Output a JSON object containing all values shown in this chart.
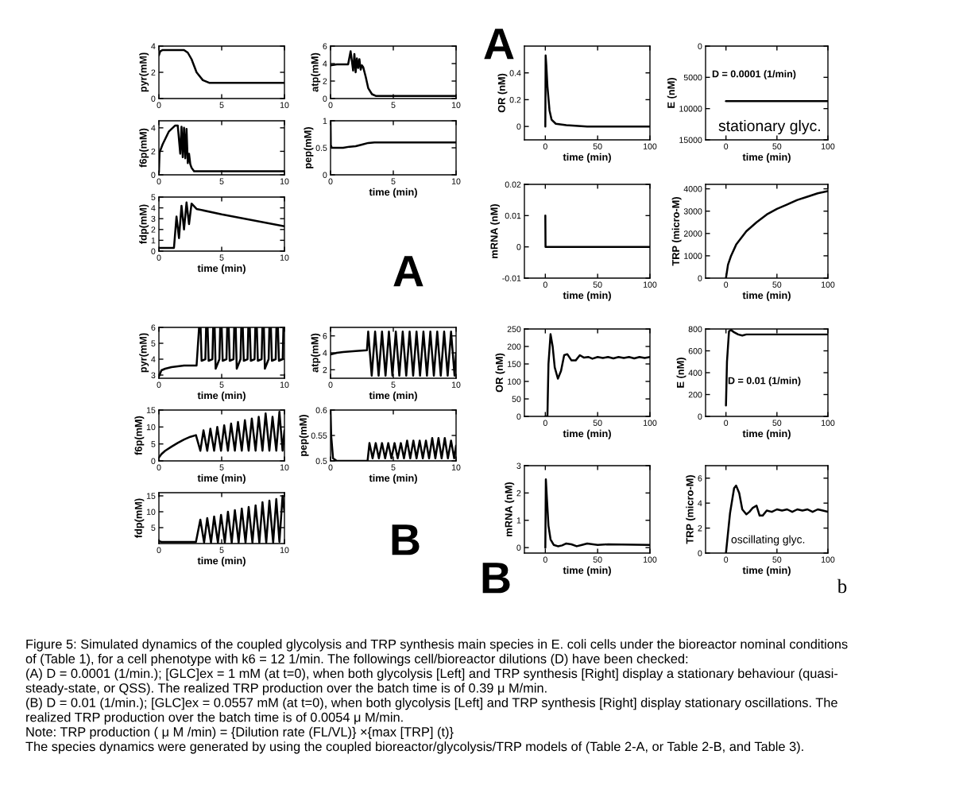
{
  "chart_data": [
    {
      "type": "line",
      "ylabel": "pyr(mM)",
      "xlim": [
        0,
        10
      ],
      "xticks": [
        0,
        5,
        10
      ],
      "ylim": [
        0,
        4
      ],
      "yticks": [
        0,
        2,
        4
      ],
      "x": [
        0,
        0.1,
        0.3,
        1,
        2,
        2.3,
        2.6,
        3,
        3.5,
        4,
        5,
        10
      ],
      "series": [
        {
          "color": "#000000",
          "values": [
            3.3,
            3.6,
            3.7,
            3.7,
            3.7,
            3.5,
            3.0,
            2.0,
            1.4,
            1.2,
            1.2,
            1.2
          ]
        }
      ]
    },
    {
      "type": "line",
      "ylabel": "atp(mM)",
      "xlim": [
        0,
        10
      ],
      "xticks": [
        0,
        5,
        10
      ],
      "ylim": [
        0,
        6
      ],
      "yticks": [
        0,
        2,
        4,
        6
      ],
      "x": [
        0,
        0.5,
        1.4,
        1.6,
        1.8,
        1.9,
        2.0,
        2.1,
        2.2,
        2.3,
        2.4,
        2.5,
        2.6,
        2.8,
        3.0,
        3.3,
        3.6,
        4,
        10
      ],
      "series": [
        {
          "color": "#000000",
          "values": [
            3.8,
            3.9,
            3.9,
            5.4,
            3.2,
            5.1,
            3.0,
            4.6,
            3.5,
            4.5,
            3.3,
            3.8,
            3.6,
            2.5,
            1.2,
            0.5,
            0.3,
            0.3,
            0.3
          ]
        }
      ]
    },
    {
      "type": "line",
      "ylabel": "f6p(mM)",
      "xlim": [
        0,
        10
      ],
      "xticks": [
        0,
        5,
        10
      ],
      "ylim": [
        0,
        4.6
      ],
      "yticks": [
        0,
        2,
        4
      ],
      "x": [
        0,
        0.05,
        0.3,
        0.8,
        1.3,
        1.5,
        1.7,
        1.8,
        1.9,
        2.0,
        2.1,
        2.2,
        2.3,
        2.4,
        2.5,
        2.6,
        2.8,
        3,
        10
      ],
      "series": [
        {
          "color": "#000000",
          "values": [
            0.2,
            1.9,
            2.6,
            3.7,
            4.2,
            4.2,
            1.8,
            4.1,
            1.5,
            4.0,
            1.4,
            3.9,
            1.0,
            1.8,
            0.9,
            0.6,
            0.3,
            0.3,
            0.3
          ]
        }
      ]
    },
    {
      "type": "line",
      "xlabel": "time (min)",
      "ylabel": "pep(mM)",
      "xlim": [
        0,
        10
      ],
      "xticks": [
        0,
        5,
        10
      ],
      "ylim": [
        0,
        1
      ],
      "yticks": [
        0,
        0.5,
        1
      ],
      "x": [
        0,
        0.02,
        0.1,
        1,
        1.5,
        2,
        2.5,
        3,
        3.5,
        5,
        7,
        10
      ],
      "series": [
        {
          "color": "#000000",
          "values": [
            1,
            0.55,
            0.5,
            0.5,
            0.52,
            0.53,
            0.56,
            0.59,
            0.6,
            0.6,
            0.6,
            0.6
          ]
        }
      ]
    },
    {
      "type": "line",
      "xlabel": "time (min)",
      "ylabel": "fdp(mM)",
      "xlim": [
        0,
        10
      ],
      "xticks": [
        0,
        5,
        10
      ],
      "ylim": [
        0,
        5
      ],
      "yticks": [
        0,
        1,
        2,
        3,
        4,
        5
      ],
      "x": [
        0,
        1.2,
        1.4,
        1.6,
        1.8,
        2.0,
        2.2,
        2.4,
        2.6,
        3,
        5,
        10
      ],
      "series": [
        {
          "color": "#000000",
          "values": [
            0.3,
            0.3,
            3.2,
            1.2,
            4.2,
            2.0,
            4.5,
            2.5,
            4.4,
            3.9,
            3.4,
            2.3
          ]
        }
      ],
      "annotations": [
        "A"
      ]
    },
    {
      "type": "line",
      "xlabel": "time (min)",
      "ylabel": "OR (nM)",
      "xlim": [
        -20,
        100
      ],
      "xticks": [
        0,
        50,
        100
      ],
      "ylim": [
        -0.1,
        0.6
      ],
      "yticks": [
        0,
        0.2,
        0.4
      ],
      "x": [
        0,
        0.3,
        1,
        2,
        4,
        6,
        10,
        20,
        40,
        100
      ],
      "series": [
        {
          "color": "#000000",
          "values": [
            0,
            0.53,
            0.45,
            0.3,
            0.12,
            0.05,
            0.02,
            0.01,
            0,
            0
          ]
        }
      ],
      "annotations": [
        "A"
      ]
    },
    {
      "type": "line",
      "xlabel": "time (min)",
      "ylabel": "E (nM)",
      "xlim": [
        -20,
        100
      ],
      "xticks": [
        0,
        50,
        100
      ],
      "ylim": [
        15000,
        0
      ],
      "yticks": [
        0,
        5000,
        10000,
        15000
      ],
      "x": [
        0,
        100
      ],
      "series": [
        {
          "color": "#000000",
          "values": [
            8800,
            8800
          ]
        }
      ],
      "annotations": [
        "D = 0.0001 (1/min)",
        "stationary glyc."
      ]
    },
    {
      "type": "line",
      "xlabel": "time (min)",
      "ylabel": "mRNA (nM)",
      "xlim": [
        -20,
        100
      ],
      "xticks": [
        0,
        50,
        100
      ],
      "ylim": [
        -0.01,
        0.02
      ],
      "yticks": [
        -0.01,
        0,
        0.01,
        0.02
      ],
      "x": [
        0,
        0.2,
        1,
        100
      ],
      "series": [
        {
          "color": "#000000",
          "values": [
            0.01,
            0,
            0,
            0
          ]
        }
      ]
    },
    {
      "type": "line",
      "xlabel": "time (min)",
      "ylabel": "TRP (micro-M)",
      "xlim": [
        -20,
        100
      ],
      "xticks": [
        0,
        50,
        100
      ],
      "ylim": [
        0,
        4200
      ],
      "yticks": [
        0,
        1000,
        2000,
        3000,
        4000
      ],
      "x": [
        0,
        2,
        5,
        10,
        20,
        30,
        40,
        50,
        60,
        70,
        80,
        90,
        100
      ],
      "series": [
        {
          "color": "#000000",
          "values": [
            0,
            600,
            1000,
            1500,
            2100,
            2500,
            2850,
            3100,
            3300,
            3500,
            3650,
            3800,
            3900
          ]
        }
      ]
    },
    {
      "type": "line",
      "xlabel": "time (min)",
      "ylabel": "pyr(mM)",
      "xlim": [
        0,
        10
      ],
      "xticks": [
        0,
        5,
        10
      ],
      "ylim": [
        2.8,
        6
      ],
      "yticks": [
        3,
        4,
        5,
        6
      ],
      "x": [
        0,
        0.2,
        0.5,
        1,
        2,
        3,
        3.2,
        3.32,
        3.4,
        3.7,
        3.76,
        3.88,
        3.96,
        4.26,
        4.32,
        4.44,
        4.52,
        4.82,
        4.88,
        5.0,
        5.08,
        5.38,
        5.44,
        5.56,
        5.64,
        5.94,
        6.0,
        6.12,
        6.2,
        6.5,
        6.56,
        6.68,
        6.76,
        7.06,
        7.12,
        7.24,
        7.32,
        7.62,
        7.68,
        7.8,
        7.88,
        8.18,
        8.24,
        8.36,
        8.44,
        8.74,
        8.8,
        8.92,
        9.0,
        9.3,
        9.36,
        9.48,
        9.56,
        9.86,
        9.92,
        10
      ],
      "series": [
        {
          "color": "#000000",
          "values": [
            2.9,
            3.3,
            3.4,
            3.5,
            3.6,
            3.6,
            6,
            6,
            3.9,
            4.0,
            6,
            6,
            3.9,
            4.0,
            6,
            6,
            3.4,
            4.0,
            6,
            6,
            3.9,
            4.0,
            6,
            6,
            3.9,
            4.0,
            6,
            6,
            3.4,
            4.0,
            6,
            6,
            3.9,
            4.0,
            6,
            6,
            3.9,
            4.0,
            6,
            6,
            3.9,
            4.0,
            6,
            6,
            3.4,
            4.0,
            6,
            6,
            3.9,
            4.0,
            6,
            6,
            3.9,
            4.0,
            6,
            6
          ]
        }
      ]
    },
    {
      "type": "line",
      "xlabel": "time (min)",
      "ylabel": "atp(mM)",
      "xlim": [
        0,
        10
      ],
      "xticks": [
        0,
        5,
        10
      ],
      "ylim": [
        1,
        7
      ],
      "yticks": [
        2,
        4,
        6
      ],
      "x": [
        0,
        0.5,
        1,
        2,
        2.9,
        3.0,
        3.28,
        3.55,
        3.83,
        4.1,
        4.38,
        4.65,
        4.93,
        5.2,
        5.48,
        5.75,
        6.03,
        6.3,
        6.58,
        6.85,
        7.13,
        7.4,
        7.68,
        7.95,
        8.23,
        8.5,
        8.78,
        9.05,
        9.33,
        9.6,
        9.88,
        10
      ],
      "series": [
        {
          "color": "#000000",
          "values": [
            3.8,
            4.0,
            4.1,
            4.2,
            4.3,
            6.5,
            1.3,
            6.5,
            1.3,
            6.5,
            1.3,
            6.5,
            1.3,
            6.5,
            1.3,
            6.5,
            1.3,
            6.5,
            1.3,
            6.5,
            1.3,
            6.5,
            1.3,
            6.5,
            1.3,
            6.5,
            1.3,
            6.5,
            1.3,
            6.5,
            1.3,
            4
          ]
        }
      ]
    },
    {
      "type": "line",
      "xlabel": "time (min)",
      "ylabel": "f6p(mM)",
      "xlim": [
        0,
        10
      ],
      "xticks": [
        0,
        5,
        10
      ],
      "ylim": [
        0,
        15
      ],
      "yticks": [
        0,
        5,
        10,
        15
      ],
      "x": [
        0,
        0.2,
        0.5,
        1,
        1.5,
        2,
        2.5,
        2.95,
        3.3,
        3.55,
        3.85,
        4.1,
        4.4,
        4.65,
        4.95,
        5.2,
        5.5,
        5.75,
        6.05,
        6.3,
        6.6,
        6.85,
        7.15,
        7.4,
        7.7,
        7.95,
        8.25,
        8.5,
        8.8,
        9.05,
        9.35,
        9.6,
        9.85,
        10
      ],
      "series": [
        {
          "color": "#000000",
          "values": [
            1,
            2,
            3,
            4.2,
            5.3,
            6.3,
            7.1,
            7.6,
            3,
            9,
            3,
            9.5,
            3,
            10,
            3,
            10.5,
            3,
            11,
            3,
            11.5,
            3,
            12,
            3,
            12.5,
            3,
            13,
            3,
            14,
            3,
            13,
            3,
            14.5,
            3,
            9
          ]
        }
      ]
    },
    {
      "type": "line",
      "xlabel": "time (min)",
      "ylabel": "pep(mM)",
      "xlim": [
        0,
        10
      ],
      "xticks": [
        0,
        5,
        10
      ],
      "ylim": [
        0.5,
        0.6
      ],
      "yticks": [
        0.5,
        0.55,
        0.6
      ],
      "x": [
        0,
        0.05,
        0.2,
        0.5,
        1,
        2.95,
        3.1,
        3.35,
        3.6,
        3.85,
        4.1,
        4.35,
        4.6,
        4.85,
        5.1,
        5.35,
        5.6,
        5.85,
        6.1,
        6.35,
        6.6,
        6.85,
        7.1,
        7.35,
        7.6,
        7.85,
        8.1,
        8.35,
        8.6,
        8.85,
        9.1,
        9.35,
        9.6,
        9.85,
        10
      ],
      "series": [
        {
          "color": "#000000",
          "values": [
            0.6,
            0.55,
            0.505,
            0.5,
            0.5,
            0.5,
            0.535,
            0.505,
            0.535,
            0.505,
            0.535,
            0.505,
            0.535,
            0.505,
            0.535,
            0.505,
            0.535,
            0.505,
            0.54,
            0.505,
            0.54,
            0.505,
            0.54,
            0.505,
            0.54,
            0.505,
            0.545,
            0.505,
            0.545,
            0.505,
            0.545,
            0.505,
            0.54,
            0.505,
            0.53
          ]
        }
      ]
    },
    {
      "type": "line",
      "xlabel": "time (min)",
      "ylabel": "fdp(mM)",
      "xlim": [
        0,
        10
      ],
      "xticks": [
        0,
        5,
        10
      ],
      "ylim": [
        0,
        16
      ],
      "yticks": [
        5,
        10,
        15
      ],
      "x": [
        0,
        0.2,
        2.95,
        3.3,
        3.6,
        3.85,
        4.15,
        4.4,
        4.7,
        4.95,
        5.25,
        5.5,
        5.8,
        6.05,
        6.35,
        6.6,
        6.9,
        7.15,
        7.45,
        7.7,
        8.0,
        8.25,
        8.55,
        8.8,
        9.1,
        9.35,
        9.6,
        9.85,
        10
      ],
      "series": [
        {
          "color": "#000000",
          "values": [
            0.8,
            0.5,
            0.5,
            7.5,
            0.3,
            8,
            0.3,
            8.5,
            0.3,
            9,
            0.3,
            10,
            0.3,
            10.5,
            0.3,
            11,
            0.3,
            11.5,
            0.3,
            12,
            0.3,
            13,
            0.3,
            13.5,
            0.3,
            14,
            0.5,
            15,
            10
          ]
        }
      ],
      "annotations": [
        "B"
      ]
    },
    {
      "type": "line",
      "xlabel": "time (min)",
      "ylabel": "OR (nM)",
      "xlim": [
        -20,
        100
      ],
      "xticks": [
        0,
        50,
        100
      ],
      "ylim": [
        0,
        250
      ],
      "yticks": [
        0,
        50,
        100,
        150,
        200,
        250
      ],
      "x": [
        0,
        2,
        3,
        5,
        7,
        9,
        12,
        15,
        18,
        21,
        25,
        29,
        33,
        37,
        41,
        45,
        50,
        55,
        60,
        65,
        70,
        75,
        80,
        85,
        90,
        95,
        100
      ],
      "series": [
        {
          "color": "#000000",
          "values": [
            0,
            0,
            150,
            235,
            200,
            140,
            108,
            130,
            175,
            178,
            160,
            160,
            175,
            168,
            170,
            165,
            170,
            167,
            170,
            166,
            170,
            167,
            170,
            166,
            170,
            167,
            170
          ]
        }
      ]
    },
    {
      "type": "line",
      "xlabel": "time (min)",
      "ylabel": "E (nM)",
      "xlim": [
        -20,
        100
      ],
      "xticks": [
        0,
        50,
        100
      ],
      "ylim": [
        0,
        800
      ],
      "yticks": [
        0,
        200,
        400,
        600,
        800
      ],
      "x": [
        0,
        1,
        3,
        5,
        8,
        12,
        16,
        20,
        30,
        50,
        100
      ],
      "series": [
        {
          "color": "#000000",
          "values": [
            100,
            500,
            780,
            790,
            770,
            750,
            740,
            750,
            750,
            750,
            750
          ]
        }
      ],
      "annotations": [
        "D = 0.01 (1/min)"
      ]
    },
    {
      "type": "line",
      "xlabel": "time (min)",
      "ylabel": "mRNA (nM)",
      "xlim": [
        -20,
        100
      ],
      "xticks": [
        0,
        50,
        100
      ],
      "ylim": [
        -0.2,
        3
      ],
      "yticks": [
        0,
        1,
        2,
        3
      ],
      "x": [
        0,
        0.5,
        1.5,
        3,
        5,
        8,
        12,
        16,
        20,
        25,
        30,
        35,
        40,
        50,
        60,
        100
      ],
      "series": [
        {
          "color": "#000000",
          "values": [
            0,
            2.5,
            1.8,
            0.8,
            0.3,
            0.1,
            0.05,
            0.08,
            0.15,
            0.12,
            0.05,
            0.1,
            0.15,
            0.1,
            0.12,
            0.1
          ]
        }
      ],
      "annotations": [
        "B"
      ]
    },
    {
      "type": "line",
      "xlabel": "time (min)",
      "ylabel": "TRP (micro-M)",
      "xlim": [
        -20,
        100
      ],
      "xticks": [
        0,
        50,
        100
      ],
      "ylim": [
        0,
        7
      ],
      "yticks": [
        0,
        2,
        4,
        6
      ],
      "x": [
        0,
        4,
        8,
        10,
        13,
        16,
        20,
        23,
        26,
        30,
        33,
        36,
        40,
        45,
        50,
        55,
        60,
        65,
        70,
        75,
        80,
        85,
        90,
        95,
        100
      ],
      "series": [
        {
          "color": "#000000",
          "values": [
            0,
            3.2,
            5.2,
            5.4,
            4.8,
            3.5,
            3.1,
            3.3,
            3.6,
            3.8,
            3.0,
            3.0,
            3.4,
            3.3,
            3.5,
            3.4,
            3.5,
            3.3,
            3.5,
            3.4,
            3.5,
            3.3,
            3.5,
            3.4,
            3.3
          ]
        }
      ],
      "annotations": [
        "oscillating glyc.",
        "b"
      ]
    },
    {
      "type": "other",
      "annotations": [
        "Figure 5: Simulated dynamics of the coupled glycolysis and TRP synthesis main species in E. coli cells under the bioreactor nominal conditions",
        "of (Table 1), for a cell phenotype with k6 = 12 1/min. The followings cell/bioreactor dilutions (D) have been checked:",
        "(A) D = 0.0001 (1/min.); [GLC]ex = 1 mM (at t=0), when both glycolysis [Left] and TRP synthesis [Right] display a stationary behaviour (quasi-",
        "steady-state, or QSS). The realized TRP production over the batch time is of 0.39 μ M/min.",
        "(B) D = 0.01 (1/min.); [GLC]ex = 0.0557 mM (at t=0), when both glycolysis [Left] and TRP synthesis [Right] display stationary oscillations. The",
        "realized TRP production over the batch time is of 0.0054 μ M/min.",
        "Note: TRP production ( μ M /min) = {Dilution rate (FL/VL)} ×{max [TRP] (t)}",
        "The species dynamics were generated by using the coupled bioreactor/glycolysis/TRP models of (Table 2-A, or Table 2-B, and Table 3)."
      ]
    }
  ]
}
